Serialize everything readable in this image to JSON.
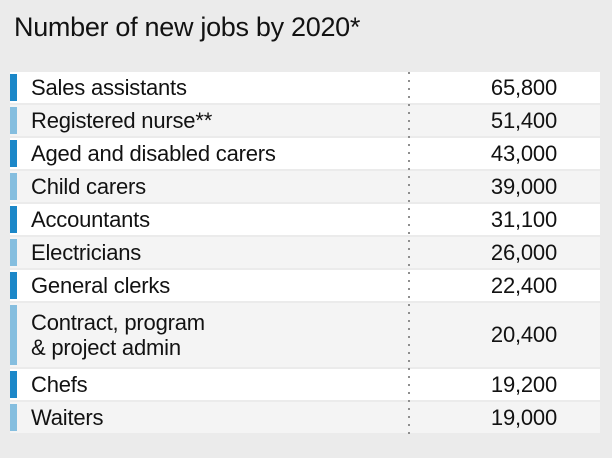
{
  "title": "Number of new jobs by 2020*",
  "colors": {
    "page-bg": "#ebebeb",
    "row-light": "#ffffff",
    "row-shaded": "#f4f4f4",
    "marker-dark": "#1b87c8",
    "marker-light": "#85bedf",
    "divider-dot": "#8f8f8f",
    "text": "#121212"
  },
  "rows": [
    {
      "label": "Sales assistants",
      "value": "65,800"
    },
    {
      "label": "Registered nurse**",
      "value": "51,400"
    },
    {
      "label": "Aged and disabled carers",
      "value": "43,000"
    },
    {
      "label": "Child carers",
      "value": "39,000"
    },
    {
      "label": "Accountants",
      "value": "31,100"
    },
    {
      "label": "Electricians",
      "value": "26,000"
    },
    {
      "label": "General clerks",
      "value": "22,400"
    },
    {
      "label": "Contract, program\n& project admin",
      "value": "20,400"
    },
    {
      "label": "Chefs",
      "value": "19,200"
    },
    {
      "label": "Waiters",
      "value": "19,000"
    }
  ],
  "chart_data": {
    "type": "table",
    "title": "Number of new jobs by 2020*",
    "categories": [
      "Sales assistants",
      "Registered nurse**",
      "Aged and disabled carers",
      "Child carers",
      "Accountants",
      "Electricians",
      "General clerks",
      "Contract, program & project admin",
      "Chefs",
      "Waiters"
    ],
    "values": [
      65800,
      51400,
      43000,
      39000,
      31100,
      26000,
      22400,
      20400,
      19200,
      19000
    ],
    "legend": "none",
    "notes": "rows alternate white/shaded backgrounds with alternating dark/light blue left markers; dotted vertical divider separates labels from values"
  }
}
